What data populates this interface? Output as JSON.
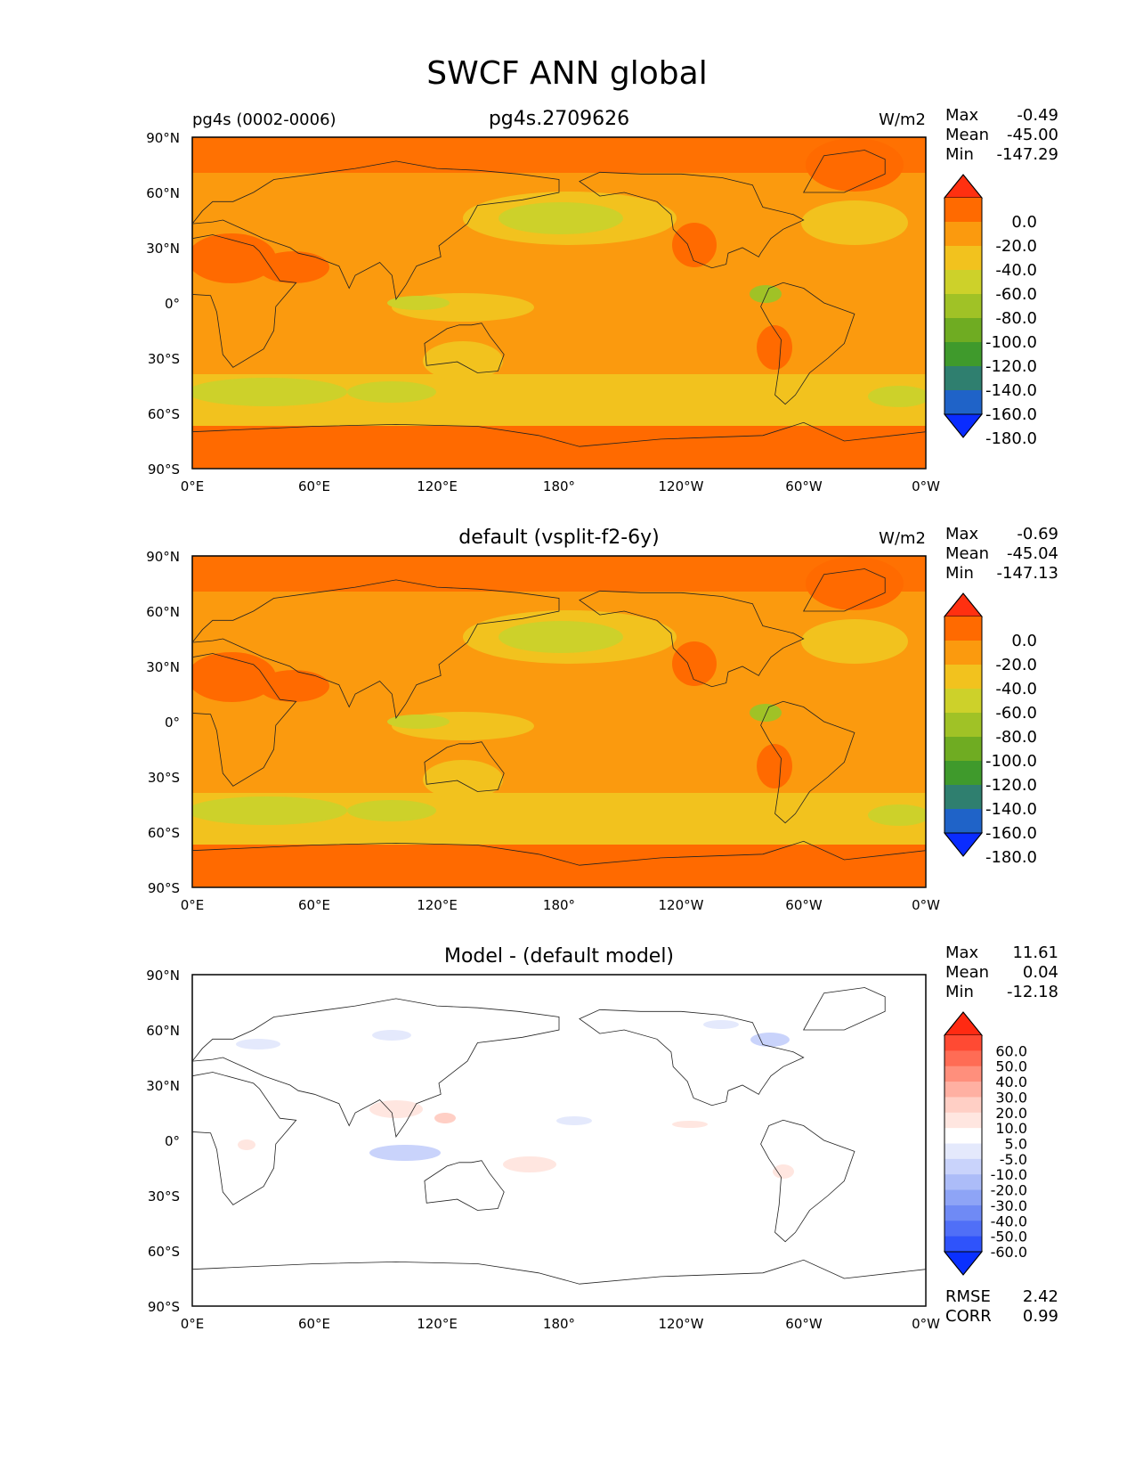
{
  "figure_title": "SWCF ANN global",
  "chart_data": [
    {
      "type": "contour-map",
      "title": "pg4s.2709626",
      "left_label": "pg4s (0002-0006)",
      "units": "W/m2",
      "stats": [
        {
          "label": "Max",
          "value": "-0.49"
        },
        {
          "label": "Mean",
          "value": "-45.00"
        },
        {
          "label": "Min",
          "value": "-147.29"
        }
      ],
      "colorbar": {
        "ticks": [
          "0.0",
          "-20.0",
          "-40.0",
          "-60.0",
          "-80.0",
          "-100.0",
          "-120.0",
          "-140.0",
          "-160.0",
          "-180.0"
        ],
        "colors": [
          "#ff3010",
          "#ff6a00",
          "#fb9a0e",
          "#f2c21e",
          "#cdd12a",
          "#a0c226",
          "#6fac22",
          "#3f9a2c",
          "#2f7f6f",
          "#1f63c8",
          "#0a2cff"
        ]
      },
      "xticks": [
        "0°E",
        "60°E",
        "120°E",
        "180°",
        "120°W",
        "60°W",
        "0°W"
      ],
      "yticks": [
        "90°N",
        "60°N",
        "30°N",
        "0°",
        "30°S",
        "60°S",
        "90°S"
      ],
      "field": "swcf"
    },
    {
      "type": "contour-map",
      "title": "default (vsplit-f2-6y)",
      "units": "W/m2",
      "stats": [
        {
          "label": "Max",
          "value": "-0.69"
        },
        {
          "label": "Mean",
          "value": "-45.04"
        },
        {
          "label": "Min",
          "value": "-147.13"
        }
      ],
      "colorbar": {
        "ticks": [
          "0.0",
          "-20.0",
          "-40.0",
          "-60.0",
          "-80.0",
          "-100.0",
          "-120.0",
          "-140.0",
          "-160.0",
          "-180.0"
        ],
        "colors": [
          "#ff3010",
          "#ff6a00",
          "#fb9a0e",
          "#f2c21e",
          "#cdd12a",
          "#a0c226",
          "#6fac22",
          "#3f9a2c",
          "#2f7f6f",
          "#1f63c8",
          "#0a2cff"
        ]
      },
      "xticks": [
        "0°E",
        "60°E",
        "120°E",
        "180°",
        "120°W",
        "60°W",
        "0°W"
      ],
      "yticks": [
        "90°N",
        "60°N",
        "30°N",
        "0°",
        "30°S",
        "60°S",
        "90°S"
      ],
      "field": "swcf"
    },
    {
      "type": "contour-map",
      "title": "Model - (default model)",
      "stats": [
        {
          "label": "Max",
          "value": "11.61"
        },
        {
          "label": "Mean",
          "value": "0.04"
        },
        {
          "label": "Min",
          "value": "-12.18"
        }
      ],
      "colorbar": {
        "ticks": [
          "60.0",
          "50.0",
          "40.0",
          "30.0",
          "20.0",
          "10.0",
          "5.0",
          "-5.0",
          "-10.0",
          "-20.0",
          "-30.0",
          "-40.0",
          "-50.0",
          "-60.0"
        ],
        "colors": [
          "#ff2a12",
          "#ff4a33",
          "#ff6c55",
          "#ff8f7c",
          "#ffb0a2",
          "#ffcfc5",
          "#ffe6e0",
          "#ffffff",
          "#e4e9fc",
          "#c9d3fb",
          "#acbcf8",
          "#8ea4f6",
          "#6f8af5",
          "#506ff7",
          "#2f53fb",
          "#0a30ff"
        ]
      },
      "xticks": [
        "0°E",
        "60°E",
        "120°E",
        "180°",
        "120°W",
        "60°W",
        "0°W"
      ],
      "yticks": [
        "90°N",
        "60°N",
        "30°N",
        "0°",
        "30°S",
        "60°S",
        "90°S"
      ],
      "extra_stats": [
        {
          "label": "RMSE",
          "value": "2.42"
        },
        {
          "label": "CORR",
          "value": "0.99"
        }
      ],
      "field": "diff"
    }
  ]
}
